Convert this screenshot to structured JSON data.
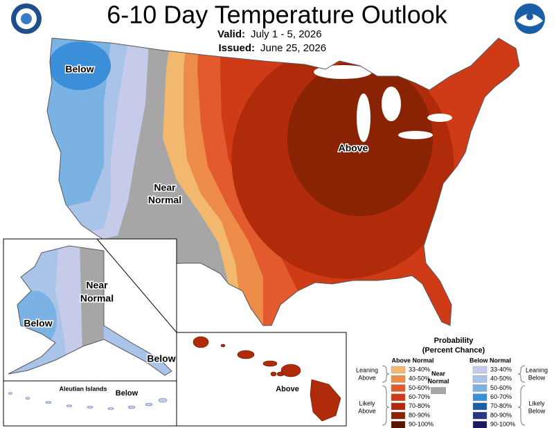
{
  "header": {
    "title": "6-10 Day Temperature Outlook",
    "valid_label": "Valid:",
    "valid": "July 1 - 5, 2026",
    "issued_label": "Issued:",
    "issued": "June 25, 2026"
  },
  "map_labels": {
    "conus_below": "Below",
    "conus_near": [
      "Near",
      "Normal"
    ],
    "conus_above": "Above",
    "alaska_near": [
      "Near",
      "Normal"
    ],
    "alaska_below": "Below",
    "alaska_below_se": "Below",
    "aleutian_title": "Aleutian Islands",
    "aleutian_below": "Below",
    "hawaii_above": "Above"
  },
  "legend": {
    "title": "Probability",
    "subtitle": "(Percent Chance)",
    "above_header": "Above Normal",
    "below_header": "Below Normal",
    "near": [
      "Near",
      "Normal"
    ],
    "near_color": "#a6a6a6",
    "leaning_above": [
      "Leaning",
      "Above"
    ],
    "likely_above": [
      "Likely",
      "Above"
    ],
    "leaning_below": [
      "Leaning",
      "Below"
    ],
    "likely_below": [
      "Likely",
      "Below"
    ],
    "above": [
      {
        "range": "33-40%",
        "color": "#f2b86e"
      },
      {
        "range": "40-50%",
        "color": "#ec8c48"
      },
      {
        "range": "50-60%",
        "color": "#e25a2e"
      },
      {
        "range": "60-70%",
        "color": "#cf3b17"
      },
      {
        "range": "70-80%",
        "color": "#b02b0a"
      },
      {
        "range": "80-90%",
        "color": "#8a2204"
      },
      {
        "range": "90-100%",
        "color": "#5a1400"
      }
    ],
    "below": [
      {
        "range": "33-40%",
        "color": "#c6cbea"
      },
      {
        "range": "40-50%",
        "color": "#a9c4e8"
      },
      {
        "range": "50-60%",
        "color": "#79b2e3"
      },
      {
        "range": "60-70%",
        "color": "#3b8fd8"
      },
      {
        "range": "70-80%",
        "color": "#1a5ea8"
      },
      {
        "range": "80-90%",
        "color": "#283583"
      },
      {
        "range": "90-100%",
        "color": "#1b1a5e"
      }
    ]
  }
}
